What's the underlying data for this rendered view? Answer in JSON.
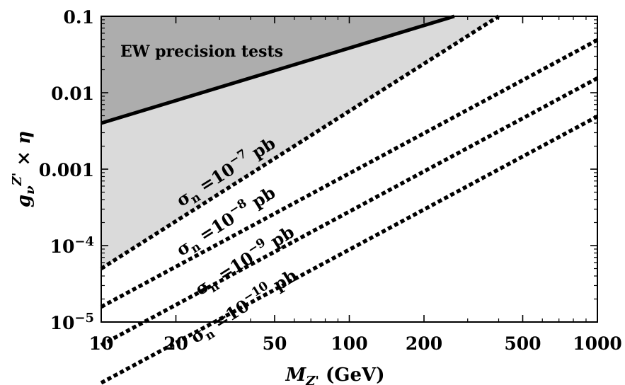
{
  "chart_data": {
    "type": "line",
    "x_scale": "log",
    "y_scale": "log",
    "xlim": [
      10,
      1000
    ],
    "ylim": [
      1e-05,
      0.1
    ],
    "grid": false,
    "x_ticks": [
      {
        "value": 10,
        "label": "10"
      },
      {
        "value": 20,
        "label": "20"
      },
      {
        "value": 50,
        "label": "50"
      },
      {
        "value": 100,
        "label": "100"
      },
      {
        "value": 200,
        "label": "200"
      },
      {
        "value": 500,
        "label": "500"
      },
      {
        "value": 1000,
        "label": "1000"
      }
    ],
    "y_ticks": [
      {
        "value": 0.1,
        "label": "0.1",
        "base": "0.1",
        "exp": ""
      },
      {
        "value": 0.01,
        "label": "0.01",
        "base": "0.01",
        "exp": ""
      },
      {
        "value": 0.001,
        "label": "0.001",
        "base": "0.001",
        "exp": ""
      },
      {
        "value": 0.0001,
        "label": "10^-4",
        "base": "10",
        "exp": "−4"
      },
      {
        "value": 1e-05,
        "label": "10^-5",
        "base": "10",
        "exp": "−5"
      }
    ],
    "xlabel": {
      "main": "M",
      "sub": "Z'",
      "unit": " (GeV)"
    },
    "ylabel": {
      "g": "g",
      "sub": "ν",
      "sup": "Z'",
      "rest": " × η"
    },
    "region_colors": {
      "ew_excluded": "#adadad",
      "dd_excluded": "#dadada"
    },
    "series": [
      {
        "kind": "ew-bound",
        "style": "solid",
        "x": [
          10,
          265
        ],
        "y": [
          0.004,
          0.1
        ]
      },
      {
        "kind": "sigma-contour",
        "style": "dashed",
        "x": [
          10,
          400
        ],
        "y": [
          5e-05,
          0.1
        ]
      },
      {
        "kind": "sigma-contour",
        "style": "dashed",
        "x": [
          10,
          1000
        ],
        "y": [
          1.58e-05,
          0.0489
        ]
      },
      {
        "kind": "sigma-contour",
        "style": "dashed",
        "x": [
          10,
          1000
        ],
        "y": [
          5e-06,
          0.0155
        ]
      },
      {
        "kind": "sigma-contour",
        "style": "dashed",
        "x": [
          10,
          1000
        ],
        "y": [
          1.6e-06,
          0.0049
        ]
      }
    ],
    "annotations": {
      "ew_region": "EW precision tests",
      "sigma": [
        {
          "sym": "σ",
          "sub": "n",
          "eq": " =10",
          "exp": "−7",
          "unit": " pb",
          "x": 21,
          "y": 0.00032
        },
        {
          "sym": "σ",
          "sub": "n",
          "eq": " =10",
          "exp": "−8",
          "unit": " pb",
          "x": 21,
          "y": 7.2e-05
        },
        {
          "sym": "σ",
          "sub": "n",
          "eq": " =10",
          "exp": "−9",
          "unit": " pb",
          "x": 25,
          "y": 2.2e-05
        },
        {
          "sym": "σ",
          "sub": "n",
          "eq": " =10",
          "exp": "−10",
          "unit": " pb",
          "x": 24,
          "y": 5.2e-06
        }
      ]
    }
  }
}
